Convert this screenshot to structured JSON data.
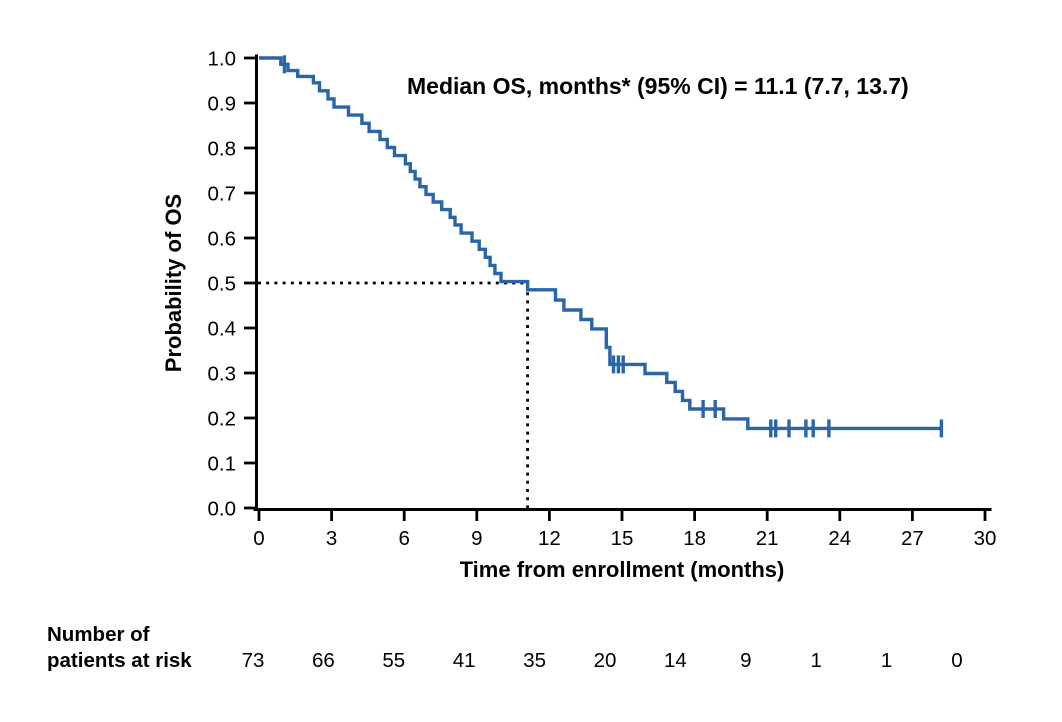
{
  "chart_data": {
    "type": "line",
    "subtype": "kaplan-meier-step",
    "annotation": "Median OS, months* (95% CI) = 11.1 (7.7, 13.7)",
    "xlabel": "Time from enrollment (months)",
    "ylabel": "Probability of OS",
    "x_ticks": [
      0,
      3,
      6,
      9,
      12,
      15,
      18,
      21,
      24,
      27,
      30
    ],
    "y_ticks": [
      "1.0",
      "0.9",
      "0.8",
      "0.7",
      "0.6",
      "0.5",
      "0.4",
      "0.3",
      "0.2",
      "0.1",
      "0.0"
    ],
    "xlim": [
      0,
      30
    ],
    "ylim": [
      0.0,
      1.0
    ],
    "grid": false,
    "median": {
      "x": 11.1,
      "y": 0.5,
      "line_style": "dotted"
    },
    "series": [
      {
        "name": "Overall survival",
        "color": "#2A65A8",
        "end_time": 28.2,
        "steps": [
          [
            0.0,
            1.0
          ],
          [
            0.9,
            0.986
          ],
          [
            1.2,
            0.972
          ],
          [
            1.6,
            0.959
          ],
          [
            2.25,
            0.945
          ],
          [
            2.5,
            0.927
          ],
          [
            2.85,
            0.909
          ],
          [
            3.1,
            0.891
          ],
          [
            3.7,
            0.873
          ],
          [
            4.25,
            0.855
          ],
          [
            4.55,
            0.837
          ],
          [
            5.0,
            0.819
          ],
          [
            5.3,
            0.801
          ],
          [
            5.6,
            0.783
          ],
          [
            6.05,
            0.765
          ],
          [
            6.25,
            0.748
          ],
          [
            6.45,
            0.731
          ],
          [
            6.65,
            0.714
          ],
          [
            6.9,
            0.697
          ],
          [
            7.2,
            0.68
          ],
          [
            7.55,
            0.663
          ],
          [
            7.9,
            0.646
          ],
          [
            8.1,
            0.629
          ],
          [
            8.35,
            0.611
          ],
          [
            8.8,
            0.593
          ],
          [
            9.1,
            0.575
          ],
          [
            9.35,
            0.557
          ],
          [
            9.55,
            0.539
          ],
          [
            9.75,
            0.521
          ],
          [
            10.0,
            0.503
          ],
          [
            11.1,
            0.485
          ],
          [
            12.25,
            0.462
          ],
          [
            12.6,
            0.44
          ],
          [
            13.3,
            0.419
          ],
          [
            13.75,
            0.398
          ],
          [
            14.35,
            0.357
          ],
          [
            14.5,
            0.319
          ],
          [
            15.95,
            0.299
          ],
          [
            16.85,
            0.279
          ],
          [
            17.2,
            0.259
          ],
          [
            17.5,
            0.239
          ],
          [
            17.8,
            0.22
          ],
          [
            19.2,
            0.198
          ],
          [
            20.2,
            0.177
          ]
        ],
        "censors": [
          [
            1.05,
            0.986
          ],
          [
            14.65,
            0.319
          ],
          [
            14.85,
            0.319
          ],
          [
            15.05,
            0.319
          ],
          [
            18.35,
            0.22
          ],
          [
            18.85,
            0.22
          ],
          [
            21.15,
            0.177
          ],
          [
            21.35,
            0.177
          ],
          [
            21.9,
            0.177
          ],
          [
            22.6,
            0.177
          ],
          [
            22.9,
            0.177
          ],
          [
            23.55,
            0.177
          ],
          [
            28.2,
            0.177
          ]
        ]
      }
    ]
  },
  "risk_table": {
    "label_line1": "Number of",
    "label_line2": "patients at risk",
    "times": [
      0,
      3,
      6,
      9,
      12,
      15,
      18,
      21,
      24,
      27,
      30
    ],
    "values": [
      73,
      66,
      55,
      41,
      35,
      20,
      14,
      9,
      1,
      1,
      0
    ]
  }
}
